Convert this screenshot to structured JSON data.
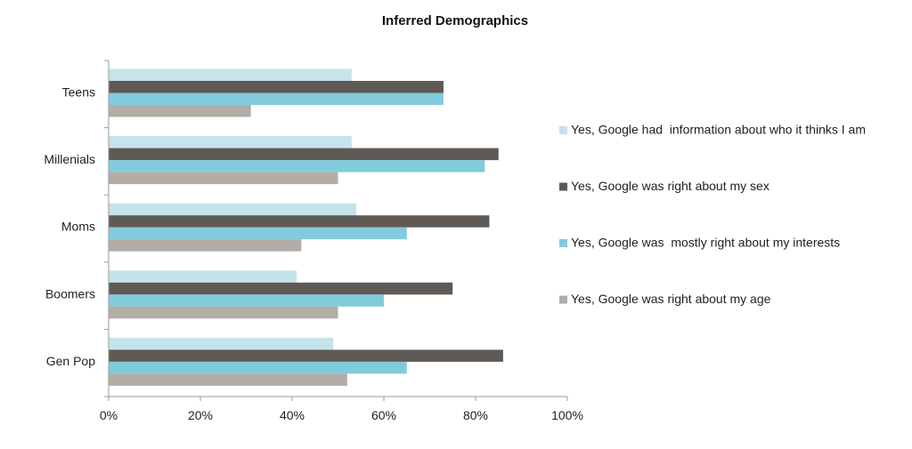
{
  "chart_data": {
    "type": "bar",
    "orientation": "horizontal",
    "title": "Inferred Demographics",
    "xlabel": "",
    "ylabel": "",
    "categories": [
      "Teens",
      "Millenials",
      "Moms",
      "Boomers",
      "Gen Pop"
    ],
    "series": [
      {
        "name": "Yes, Google had  information about who it thinks I am",
        "color": "#c5e3ea",
        "values": [
          53,
          53,
          54,
          41,
          49
        ]
      },
      {
        "name": "Yes, Google was right about my sex",
        "color": "#5f5a55",
        "values": [
          73,
          85,
          83,
          75,
          86
        ]
      },
      {
        "name": "Yes, Google was  mostly right about my interests",
        "color": "#82cbdc",
        "values": [
          73,
          82,
          65,
          60,
          65
        ]
      },
      {
        "name": "Yes, Google was right about my age",
        "color": "#b3ada7",
        "values": [
          31,
          50,
          42,
          50,
          52
        ]
      }
    ],
    "xlim": [
      0,
      100
    ],
    "xticks": [
      "0%",
      "20%",
      "40%",
      "60%",
      "80%",
      "100%"
    ],
    "grid": false,
    "legend": "right"
  }
}
